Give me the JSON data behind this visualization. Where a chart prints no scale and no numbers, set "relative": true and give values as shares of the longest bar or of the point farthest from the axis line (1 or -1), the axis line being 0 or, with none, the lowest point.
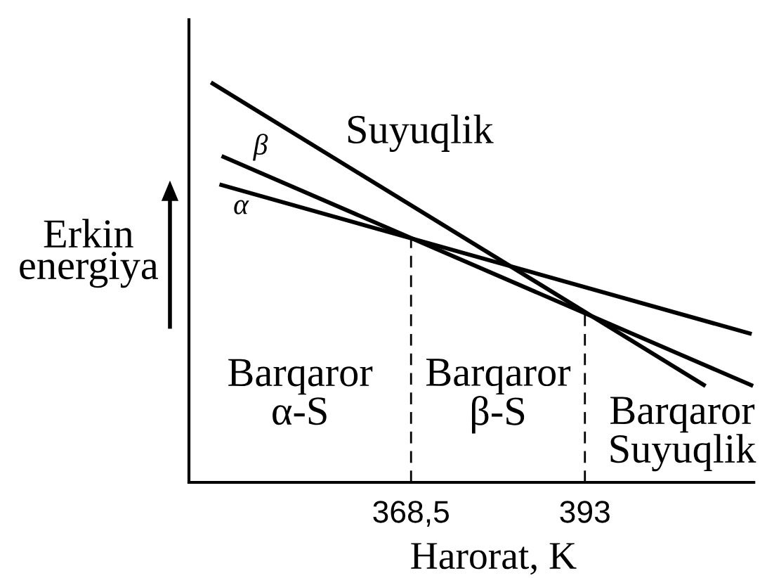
{
  "chart_data": {
    "type": "line",
    "relative": true,
    "xlabel": "Harorat, K",
    "ylabel": "Erkin\nenergiya",
    "xlim": [
      337.2,
      416.8
    ],
    "xticks": [
      {
        "value": 368.5,
        "label": "368,5"
      },
      393
    ],
    "series": [
      {
        "name": "α",
        "color": "#000000",
        "x": [
          341.5,
          416.5
        ],
        "values": [
          0.745,
          0.371
        ]
      },
      {
        "name": "β",
        "color": "#000000",
        "x": [
          341.8,
          416.7
        ],
        "values": [
          0.816,
          0.241
        ]
      },
      {
        "name": "Suyuqlik",
        "color": "#000000",
        "x": [
          340.3,
          410.0
        ],
        "values": [
          1.0,
          0.241
        ]
      }
    ],
    "ref_lines": [
      {
        "axis": "x",
        "value": 368.5,
        "color": "#000000",
        "line_style": "dashed"
      },
      {
        "axis": "x",
        "value": 393,
        "color": "#000000",
        "line_style": "dashed"
      }
    ],
    "annotations": [
      "Barqaror\nα-S",
      "Barqaror\nβ-S",
      "Barqaror\nSuyuqlik"
    ],
    "line_style": "solid"
  }
}
